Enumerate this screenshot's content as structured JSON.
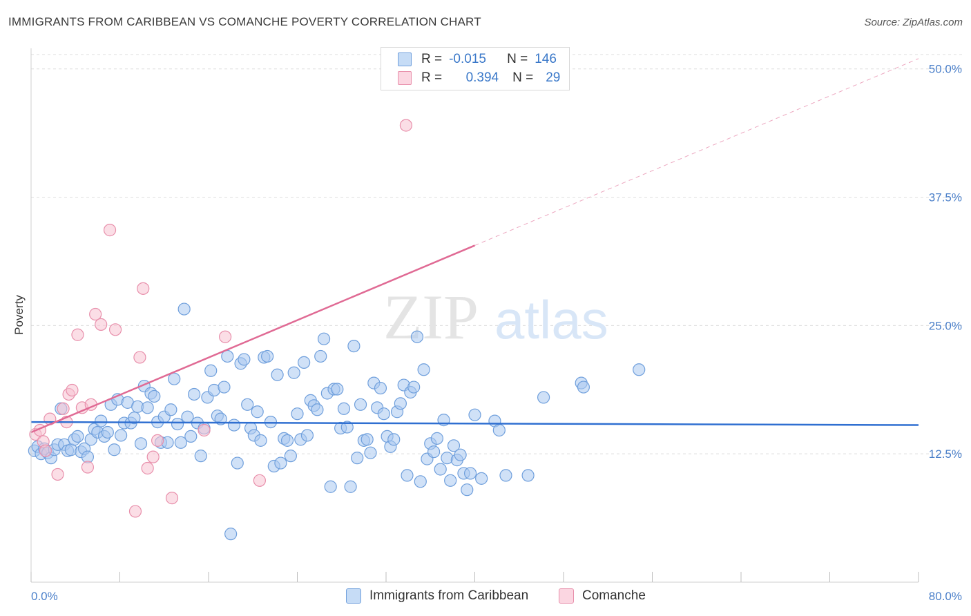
{
  "title": "IMMIGRANTS FROM CARIBBEAN VS COMANCHE POVERTY CORRELATION CHART",
  "source": "Source: ZipAtlas.com",
  "watermark": {
    "zip": "ZIP",
    "atlas": "atlas"
  },
  "legend": {
    "r_label": "R =",
    "n_label": "N =",
    "rows": [
      {
        "r": "-0.015",
        "n": "146",
        "color": "#8ab4ec"
      },
      {
        "r": "0.394",
        "n": "29",
        "color": "#f2a7bd"
      }
    ]
  },
  "colors": {
    "blue_fill": "#a9c8f0",
    "blue_stroke": "#6f9fdc",
    "blue_line": "#2f6fd1",
    "pink_fill": "#f7c3d2",
    "pink_stroke": "#e88fab",
    "pink_line": "#e06a94",
    "grid": "#dddddd",
    "axis_text": "#4a7fc9"
  },
  "chart_data": {
    "type": "scatter",
    "title": "IMMIGRANTS FROM CARIBBEAN VS COMANCHE POVERTY CORRELATION CHART",
    "xlabel": "",
    "ylabel": "Poverty",
    "xlim": [
      0,
      80
    ],
    "ylim": [
      0,
      52
    ],
    "x_tick_labels": [
      "0.0%",
      "80.0%"
    ],
    "y_ticks": [
      12.5,
      25.0,
      37.5,
      50.0
    ],
    "y_tick_labels": [
      "12.5%",
      "25.0%",
      "37.5%",
      "50.0%"
    ],
    "grid": true,
    "legend_position": "top-center",
    "series": [
      {
        "name": "Immigrants from Caribbean",
        "color": "#a9c8f0",
        "trend": {
          "x": [
            0,
            80
          ],
          "y": [
            15.6,
            15.3
          ],
          "style": "solid"
        },
        "points": [
          [
            0.3,
            12.8
          ],
          [
            0.6,
            13.2
          ],
          [
            0.9,
            12.5
          ],
          [
            1.2,
            13.0
          ],
          [
            1.5,
            12.6
          ],
          [
            1.8,
            12.1
          ],
          [
            2.1,
            12.9
          ],
          [
            2.4,
            13.4
          ],
          [
            2.7,
            16.9
          ],
          [
            3.0,
            13.4
          ],
          [
            3.3,
            12.8
          ],
          [
            3.6,
            12.9
          ],
          [
            3.9,
            13.9
          ],
          [
            4.2,
            14.2
          ],
          [
            4.5,
            12.7
          ],
          [
            4.8,
            13.0
          ],
          [
            5.1,
            12.2
          ],
          [
            5.4,
            13.9
          ],
          [
            5.7,
            14.9
          ],
          [
            6.0,
            14.6
          ],
          [
            6.3,
            15.7
          ],
          [
            6.6,
            14.2
          ],
          [
            6.9,
            14.6
          ],
          [
            7.2,
            17.3
          ],
          [
            7.5,
            12.9
          ],
          [
            7.8,
            17.8
          ],
          [
            8.1,
            14.3
          ],
          [
            8.4,
            15.5
          ],
          [
            8.7,
            17.5
          ],
          [
            9.0,
            15.5
          ],
          [
            9.3,
            16.0
          ],
          [
            9.6,
            17.1
          ],
          [
            9.9,
            13.5
          ],
          [
            10.2,
            19.1
          ],
          [
            10.5,
            17.0
          ],
          [
            10.8,
            18.4
          ],
          [
            11.1,
            18.1
          ],
          [
            11.4,
            15.6
          ],
          [
            11.7,
            13.6
          ],
          [
            12.0,
            16.1
          ],
          [
            12.3,
            13.6
          ],
          [
            12.6,
            16.8
          ],
          [
            12.9,
            19.8
          ],
          [
            13.2,
            15.4
          ],
          [
            13.5,
            13.6
          ],
          [
            13.8,
            26.6
          ],
          [
            14.1,
            16.1
          ],
          [
            14.4,
            14.2
          ],
          [
            14.7,
            18.3
          ],
          [
            15.0,
            15.5
          ],
          [
            15.3,
            12.3
          ],
          [
            15.6,
            15.0
          ],
          [
            15.9,
            18.0
          ],
          [
            16.2,
            20.6
          ],
          [
            16.5,
            18.7
          ],
          [
            16.8,
            16.2
          ],
          [
            17.1,
            15.9
          ],
          [
            17.4,
            19.0
          ],
          [
            17.7,
            22.0
          ],
          [
            18.0,
            4.7
          ],
          [
            18.3,
            15.3
          ],
          [
            18.6,
            11.6
          ],
          [
            18.9,
            21.3
          ],
          [
            19.2,
            21.7
          ],
          [
            19.5,
            17.3
          ],
          [
            19.8,
            15.0
          ],
          [
            20.1,
            14.3
          ],
          [
            20.4,
            16.6
          ],
          [
            20.7,
            13.8
          ],
          [
            21.0,
            21.9
          ],
          [
            21.3,
            22.0
          ],
          [
            21.6,
            15.6
          ],
          [
            21.9,
            11.3
          ],
          [
            22.2,
            20.2
          ],
          [
            22.5,
            11.6
          ],
          [
            22.8,
            14.0
          ],
          [
            23.1,
            13.8
          ],
          [
            23.4,
            12.3
          ],
          [
            23.7,
            20.4
          ],
          [
            24.0,
            16.4
          ],
          [
            24.3,
            13.9
          ],
          [
            24.6,
            21.4
          ],
          [
            24.9,
            14.3
          ],
          [
            25.2,
            17.7
          ],
          [
            25.5,
            17.2
          ],
          [
            25.8,
            16.8
          ],
          [
            26.1,
            22.0
          ],
          [
            26.4,
            23.7
          ],
          [
            26.7,
            18.4
          ],
          [
            27.0,
            9.3
          ],
          [
            27.3,
            18.8
          ],
          [
            27.6,
            18.8
          ],
          [
            27.9,
            15.0
          ],
          [
            28.2,
            16.9
          ],
          [
            28.5,
            15.1
          ],
          [
            28.8,
            9.3
          ],
          [
            29.1,
            23.0
          ],
          [
            29.4,
            12.1
          ],
          [
            29.7,
            17.3
          ],
          [
            30.0,
            13.8
          ],
          [
            30.3,
            13.9
          ],
          [
            30.6,
            12.6
          ],
          [
            30.9,
            19.4
          ],
          [
            31.2,
            17.0
          ],
          [
            31.5,
            18.9
          ],
          [
            31.8,
            16.4
          ],
          [
            32.1,
            14.2
          ],
          [
            32.4,
            13.2
          ],
          [
            32.7,
            13.9
          ],
          [
            33.0,
            16.6
          ],
          [
            33.3,
            17.4
          ],
          [
            33.6,
            19.2
          ],
          [
            33.9,
            10.4
          ],
          [
            34.2,
            18.5
          ],
          [
            34.5,
            19.0
          ],
          [
            34.8,
            23.9
          ],
          [
            35.1,
            9.8
          ],
          [
            35.4,
            20.7
          ],
          [
            35.7,
            12.0
          ],
          [
            36.0,
            13.5
          ],
          [
            36.3,
            12.7
          ],
          [
            36.6,
            14.0
          ],
          [
            36.9,
            11.0
          ],
          [
            37.2,
            15.8
          ],
          [
            37.5,
            12.1
          ],
          [
            37.8,
            9.9
          ],
          [
            38.1,
            13.3
          ],
          [
            38.4,
            11.9
          ],
          [
            38.7,
            12.4
          ],
          [
            39.0,
            10.6
          ],
          [
            39.3,
            9.0
          ],
          [
            39.6,
            10.6
          ],
          [
            40.0,
            16.3
          ],
          [
            40.6,
            10.1
          ],
          [
            41.8,
            15.7
          ],
          [
            42.2,
            14.8
          ],
          [
            42.8,
            10.4
          ],
          [
            44.8,
            10.4
          ],
          [
            46.2,
            18.0
          ],
          [
            49.6,
            19.4
          ],
          [
            49.8,
            19.0
          ],
          [
            54.8,
            20.7
          ]
        ]
      },
      {
        "name": "Comanche",
        "color": "#f7c3d2",
        "trend": {
          "x": [
            0,
            40
          ],
          "y": [
            14.6,
            32.8
          ],
          "style": "solid",
          "extended_dashed_to": [
            80,
            51.0
          ]
        },
        "points": [
          [
            0.4,
            14.4
          ],
          [
            0.8,
            14.8
          ],
          [
            1.1,
            13.7
          ],
          [
            1.3,
            12.8
          ],
          [
            1.7,
            15.9
          ],
          [
            2.4,
            10.5
          ],
          [
            2.9,
            16.9
          ],
          [
            3.2,
            15.6
          ],
          [
            3.4,
            18.3
          ],
          [
            3.7,
            18.7
          ],
          [
            4.2,
            24.1
          ],
          [
            4.6,
            17.0
          ],
          [
            5.1,
            11.2
          ],
          [
            5.4,
            17.3
          ],
          [
            5.8,
            26.1
          ],
          [
            6.3,
            25.1
          ],
          [
            7.1,
            34.3
          ],
          [
            7.6,
            24.6
          ],
          [
            9.4,
            6.9
          ],
          [
            9.8,
            21.9
          ],
          [
            10.1,
            28.6
          ],
          [
            10.5,
            11.1
          ],
          [
            11.0,
            12.2
          ],
          [
            11.4,
            13.8
          ],
          [
            12.7,
            8.2
          ],
          [
            15.6,
            14.8
          ],
          [
            17.5,
            23.9
          ],
          [
            20.6,
            9.9
          ],
          [
            33.8,
            44.5
          ]
        ]
      }
    ]
  }
}
